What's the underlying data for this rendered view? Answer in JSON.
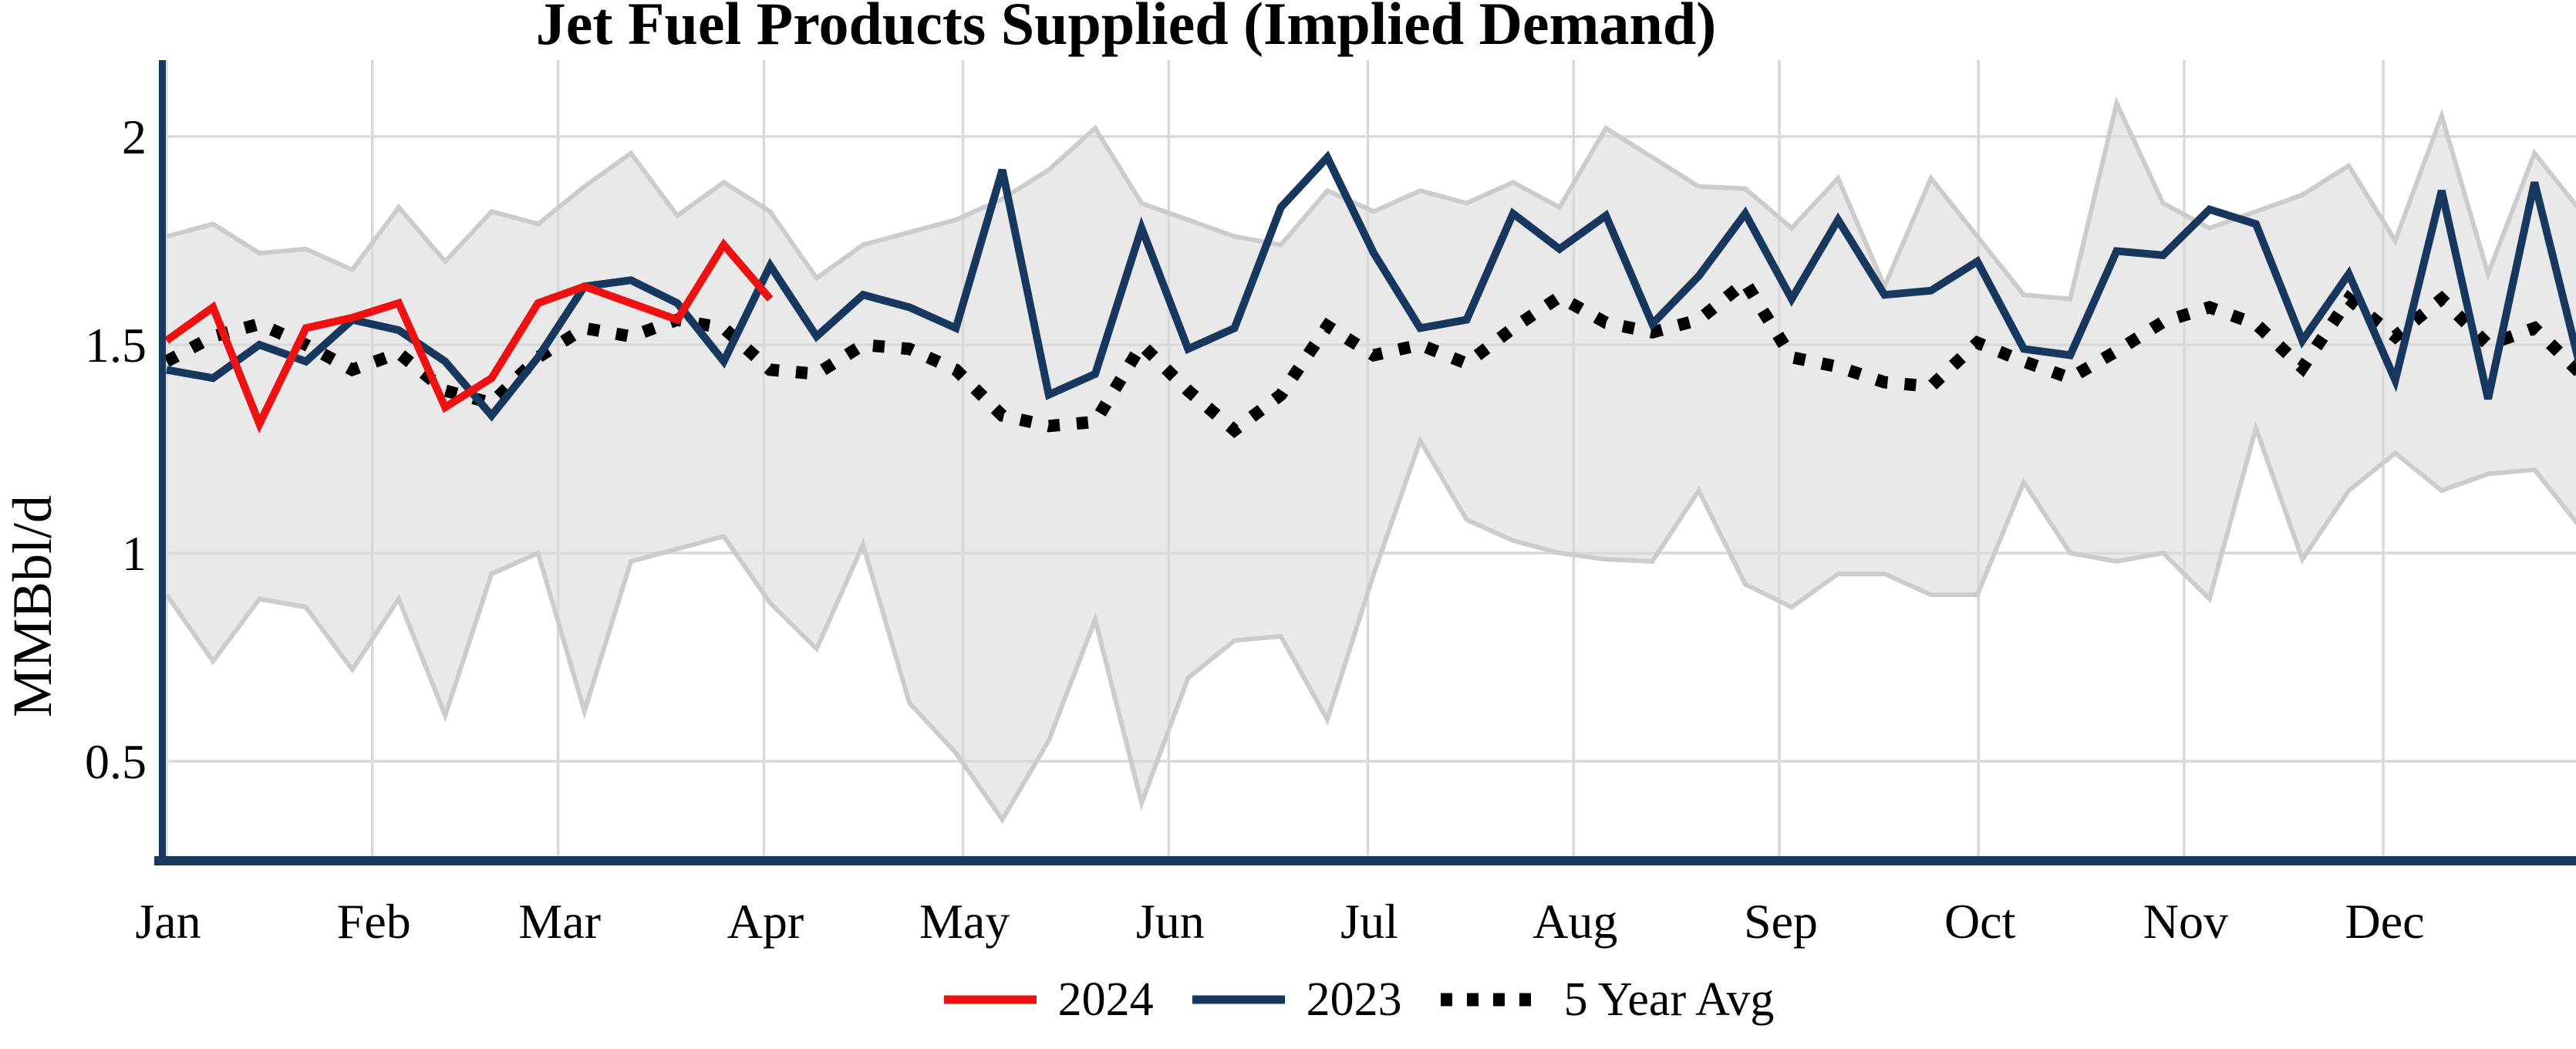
{
  "chart_data": {
    "type": "line",
    "title": "Jet Fuel Products Supplied (Implied Demand)",
    "ylabel": "MMBbl/d",
    "xlabel": "",
    "ylim": [
      0.26,
      2.18
    ],
    "grid": true,
    "legend_position": "bottom-center",
    "x_unit": "weekly",
    "months": [
      "Jan",
      "Feb",
      "Mar",
      "Apr",
      "May",
      "Jun",
      "Jul",
      "Aug",
      "Sep",
      "Oct",
      "Nov",
      "Dec"
    ],
    "y_ticks": [
      {
        "label": "2",
        "value": 2
      },
      {
        "label": "1.5",
        "value": 1.5
      },
      {
        "label": "1",
        "value": 1
      },
      {
        "label": "0.5",
        "value": 0.5
      }
    ],
    "series": [
      {
        "name": "5 Year Range",
        "type": "band",
        "fill": "#E9E9E9",
        "edge_color": "#CCCCCC",
        "upper": [
          1.76,
          1.79,
          1.72,
          1.73,
          1.68,
          1.83,
          1.7,
          1.82,
          1.79,
          1.88,
          1.96,
          1.81,
          1.89,
          1.82,
          1.66,
          1.74,
          1.77,
          1.8,
          1.85,
          1.92,
          2.02,
          1.84,
          1.8,
          1.76,
          1.74,
          1.87,
          1.82,
          1.87,
          1.84,
          1.89,
          1.83,
          2.02,
          1.95,
          1.88,
          1.875,
          1.78,
          1.9,
          1.64,
          1.9,
          1.76,
          1.62,
          1.61,
          2.08,
          1.84,
          1.78,
          1.82,
          1.86,
          1.93,
          1.75,
          2.05,
          1.67,
          1.96,
          1.82
        ],
        "lower": [
          0.9,
          0.74,
          0.89,
          0.87,
          0.72,
          0.89,
          0.61,
          0.95,
          1.0,
          0.62,
          0.98,
          1.01,
          1.04,
          0.88,
          0.77,
          1.02,
          0.64,
          0.52,
          0.36,
          0.55,
          0.84,
          0.4,
          0.7,
          0.79,
          0.8,
          0.6,
          0.95,
          1.27,
          1.08,
          1.03,
          1.0,
          0.985,
          0.98,
          1.15,
          0.925,
          0.87,
          0.95,
          0.95,
          0.9,
          0.9,
          1.17,
          1.0,
          0.98,
          1.0,
          0.89,
          1.3,
          0.985,
          1.15,
          1.24,
          1.15,
          1.19,
          1.2,
          1.06
        ]
      },
      {
        "name": "5 Year Avg",
        "type": "dotted",
        "color": "#000000",
        "values": [
          1.46,
          1.52,
          1.55,
          1.5,
          1.44,
          1.48,
          1.39,
          1.36,
          1.47,
          1.54,
          1.52,
          1.56,
          1.54,
          1.44,
          1.43,
          1.5,
          1.49,
          1.44,
          1.33,
          1.305,
          1.315,
          1.5,
          1.39,
          1.295,
          1.38,
          1.545,
          1.475,
          1.5,
          1.455,
          1.54,
          1.615,
          1.553,
          1.53,
          1.56,
          1.65,
          1.47,
          1.447,
          1.41,
          1.4,
          1.505,
          1.46,
          1.42,
          1.485,
          1.555,
          1.59,
          1.55,
          1.445,
          1.61,
          1.52,
          1.61,
          1.5,
          1.54,
          1.43
        ]
      },
      {
        "name": "2023",
        "type": "line",
        "color": "#17375E",
        "values": [
          1.44,
          1.42,
          1.5,
          1.46,
          1.56,
          1.535,
          1.46,
          1.33,
          1.47,
          1.64,
          1.655,
          1.6,
          1.46,
          1.69,
          1.52,
          1.62,
          1.59,
          1.54,
          1.92,
          1.38,
          1.43,
          1.78,
          1.49,
          1.54,
          1.83,
          1.95,
          1.72,
          1.54,
          1.56,
          1.815,
          1.73,
          1.81,
          1.55,
          1.665,
          1.815,
          1.61,
          1.8,
          1.62,
          1.63,
          1.7,
          1.49,
          1.475,
          1.725,
          1.715,
          1.825,
          1.79,
          1.51,
          1.67,
          1.415,
          1.87,
          1.37,
          1.89,
          1.44
        ]
      },
      {
        "name": "2024",
        "type": "line",
        "color": "#EE1111",
        "values": [
          1.51,
          1.59,
          1.31,
          1.54,
          1.565,
          1.6,
          1.35,
          1.42,
          1.6,
          1.64,
          1.6,
          1.56,
          1.74,
          1.61
        ]
      }
    ],
    "legend": [
      {
        "label": "2024",
        "style": "solid",
        "color": "#EE1111"
      },
      {
        "label": "2023",
        "style": "solid",
        "color": "#17375E"
      },
      {
        "label": "5 Year Avg",
        "style": "dotted",
        "color": "#000000"
      }
    ]
  },
  "axis_colors": {
    "spine": "#17375E",
    "gridline": "#D9D9D9",
    "tick_text": "#000000"
  }
}
